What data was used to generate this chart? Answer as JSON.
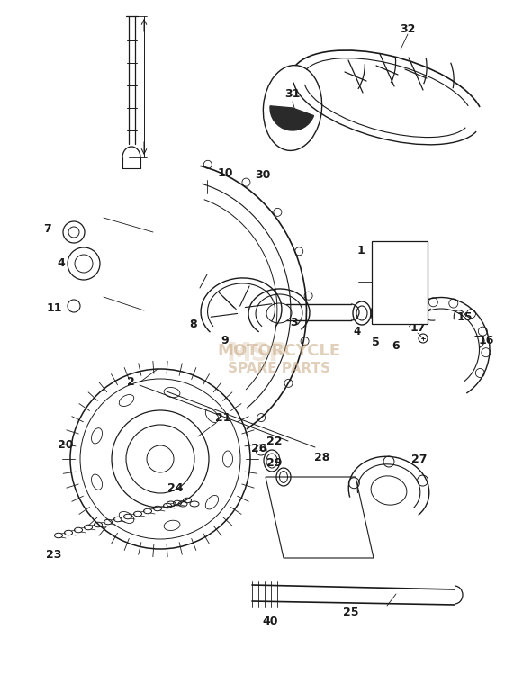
{
  "bg_color": "#ffffff",
  "fig_width": 5.61,
  "fig_height": 7.59,
  "dpi": 100,
  "line_color": "#1a1a1a",
  "watermark_line1": "MOTORCYCLE",
  "watermark_line2": "SPARE PARTS",
  "watermark_color": "#c8a882",
  "box_numbers": [
    "2",
    "8",
    "9",
    "10",
    "11",
    "30"
  ],
  "xlim": [
    0,
    561
  ],
  "ylim": [
    0,
    759
  ]
}
